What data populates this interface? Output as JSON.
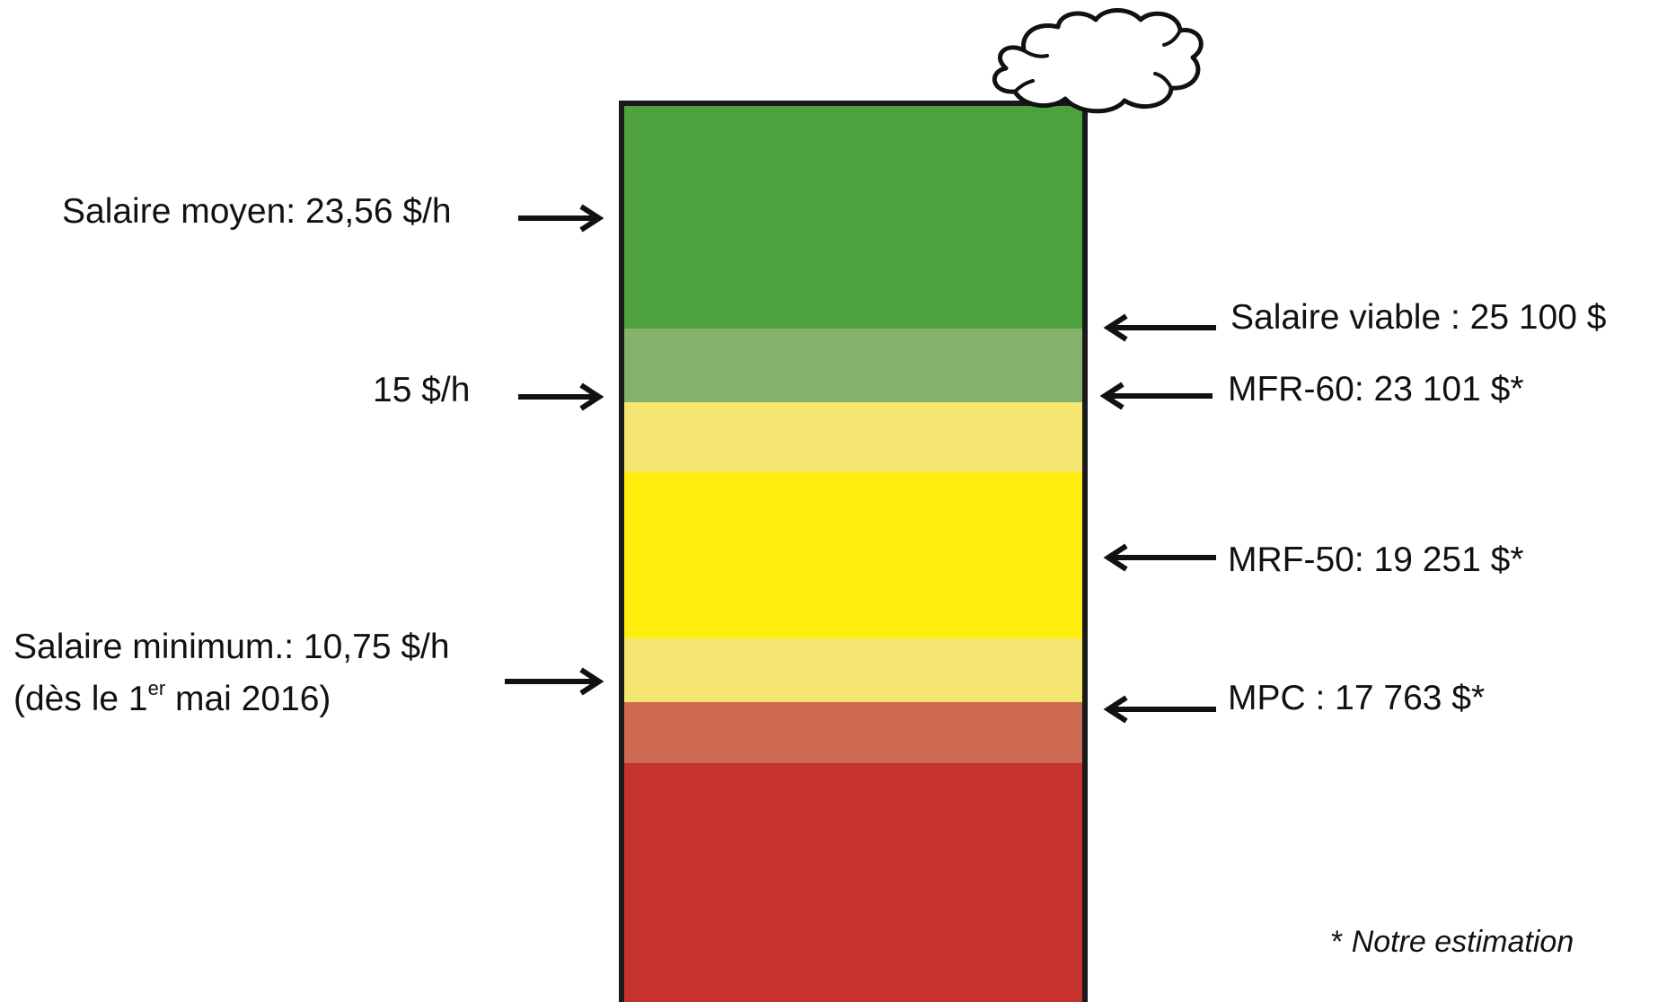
{
  "diagram": {
    "bands": [
      {
        "name": "green-dark",
        "color": "#4ea23e"
      },
      {
        "name": "green-light",
        "color": "#84b26b"
      },
      {
        "name": "yellow-light-top",
        "color": "#f5e672"
      },
      {
        "name": "yellow",
        "color": "#ffed0d"
      },
      {
        "name": "yellow-light-bottom",
        "color": "#f5e672"
      },
      {
        "name": "red-light",
        "color": "#cf6a52"
      },
      {
        "name": "red",
        "color": "#c6322c"
      }
    ],
    "left_labels": {
      "salaire_moyen": "Salaire moyen: 23,56 $/h",
      "quinze": "15 $/h",
      "salaire_minimum_line1": "Salaire minimum.: 10,75 $/h",
      "salaire_minimum_line2_before": "(dès le 1",
      "salaire_minimum_line2_sup": "er",
      "salaire_minimum_line2_after": " mai 2016)"
    },
    "right_labels": {
      "salaire_viable": "Salaire viable : 25 100 $",
      "mfr_60": "MFR-60: 23 101 $*",
      "mrf_50": "MRF-50: 19 251 $*",
      "mpc": "MPC : 17 763 $*"
    },
    "footnote": {
      "star": "*",
      "text": "Notre estimation"
    },
    "icons": {
      "cloud": "cloud-icon",
      "arrow_right": "arrow-right-icon",
      "arrow_left": "arrow-left-icon"
    },
    "colors": {
      "frame": "#1a1a1a",
      "arrow": "#111111"
    }
  }
}
